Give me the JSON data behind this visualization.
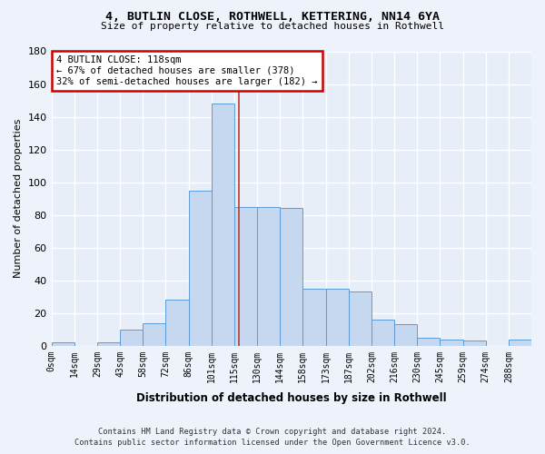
{
  "title_line1": "4, BUTLIN CLOSE, ROTHWELL, KETTERING, NN14 6YA",
  "title_line2": "Size of property relative to detached houses in Rothwell",
  "xlabel": "Distribution of detached houses by size in Rothwell",
  "ylabel": "Number of detached properties",
  "bar_labels": [
    "0sqm",
    "14sqm",
    "29sqm",
    "43sqm",
    "58sqm",
    "72sqm",
    "86sqm",
    "101sqm",
    "115sqm",
    "130sqm",
    "144sqm",
    "158sqm",
    "173sqm",
    "187sqm",
    "202sqm",
    "216sqm",
    "230sqm",
    "245sqm",
    "259sqm",
    "274sqm",
    "288sqm"
  ],
  "bar_heights": [
    2,
    0,
    2,
    10,
    14,
    28,
    95,
    148,
    85,
    85,
    84,
    35,
    35,
    33,
    16,
    13,
    5,
    4,
    3,
    0,
    4
  ],
  "bar_color": "#c5d8ef",
  "bar_edge_color": "#5b9bd5",
  "vline_color": "#c0392b",
  "annotation_title": "4 BUTLIN CLOSE: 118sqm",
  "annotation_line1": "← 67% of detached houses are smaller (378)",
  "annotation_line2": "32% of semi-detached houses are larger (182) →",
  "annotation_box_color": "#cc0000",
  "ylim": [
    0,
    180
  ],
  "yticks": [
    0,
    20,
    40,
    60,
    80,
    100,
    120,
    140,
    160,
    180
  ],
  "footer_line1": "Contains HM Land Registry data © Crown copyright and database right 2024.",
  "footer_line2": "Contains public sector information licensed under the Open Government Licence v3.0.",
  "bg_color": "#eef2fa",
  "bar_bg_color": "#e8eef8",
  "grid_color": "#ffffff"
}
